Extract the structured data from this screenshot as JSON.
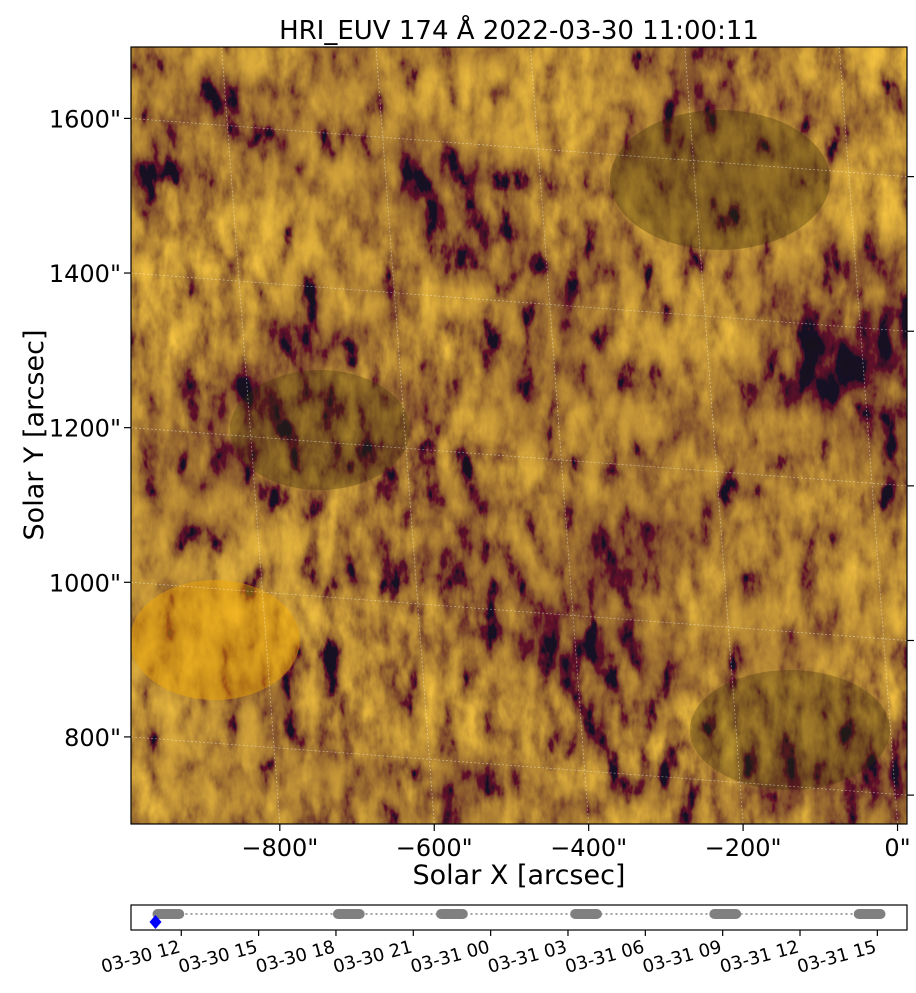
{
  "chart_data": [
    {
      "type": "heatmap",
      "title": "HRI_EUV 174 Å 2022-03-30 11:00:11",
      "xlabel": "Solar X [arcsec]",
      "ylabel": "Solar Y [arcsec]",
      "xlim": [
        -955,
        50
      ],
      "ylim": [
        725,
        1730
      ],
      "x_ticks": [
        -800,
        -600,
        -400,
        -200,
        0
      ],
      "x_tick_labels": [
        "−800\"",
        "−600\"",
        "−400\"",
        "−200\"",
        "0\""
      ],
      "y_ticks": [
        800,
        1000,
        1200,
        1400,
        1600
      ],
      "y_tick_labels": [
        "800\"",
        "1000\"",
        "1200\"",
        "1400\"",
        "1600\""
      ],
      "grid": true,
      "colormap": "solar orange (dark brown to bright orange)",
      "colors": {
        "dark": "#3b2f07",
        "mid": "#9a6e02",
        "bright": "#f5a800"
      }
    },
    {
      "type": "scatter",
      "x_tick_labels": [
        "03-30 12",
        "03-30 15",
        "03-30 18",
        "03-30 21",
        "03-31 00",
        "03-31 03",
        "03-31 06",
        "03-31 09",
        "03-31 12",
        "03-31 15"
      ],
      "x_ticks_hours": [
        12,
        15,
        18,
        21,
        24,
        27,
        30,
        33,
        36,
        39
      ],
      "xlim_hours": [
        10.05,
        40.15
      ],
      "observation_blocks_hours": [
        [
          11.0,
          12.0
        ],
        [
          18.0,
          19.0
        ],
        [
          22.0,
          23.0
        ],
        [
          27.2,
          28.2
        ],
        [
          32.6,
          33.6
        ],
        [
          38.2,
          39.2
        ]
      ],
      "current_frame_hours": 11.0,
      "colors": {
        "blocks": "#808080",
        "current": "#0000ff",
        "link": "#808080"
      }
    }
  ]
}
